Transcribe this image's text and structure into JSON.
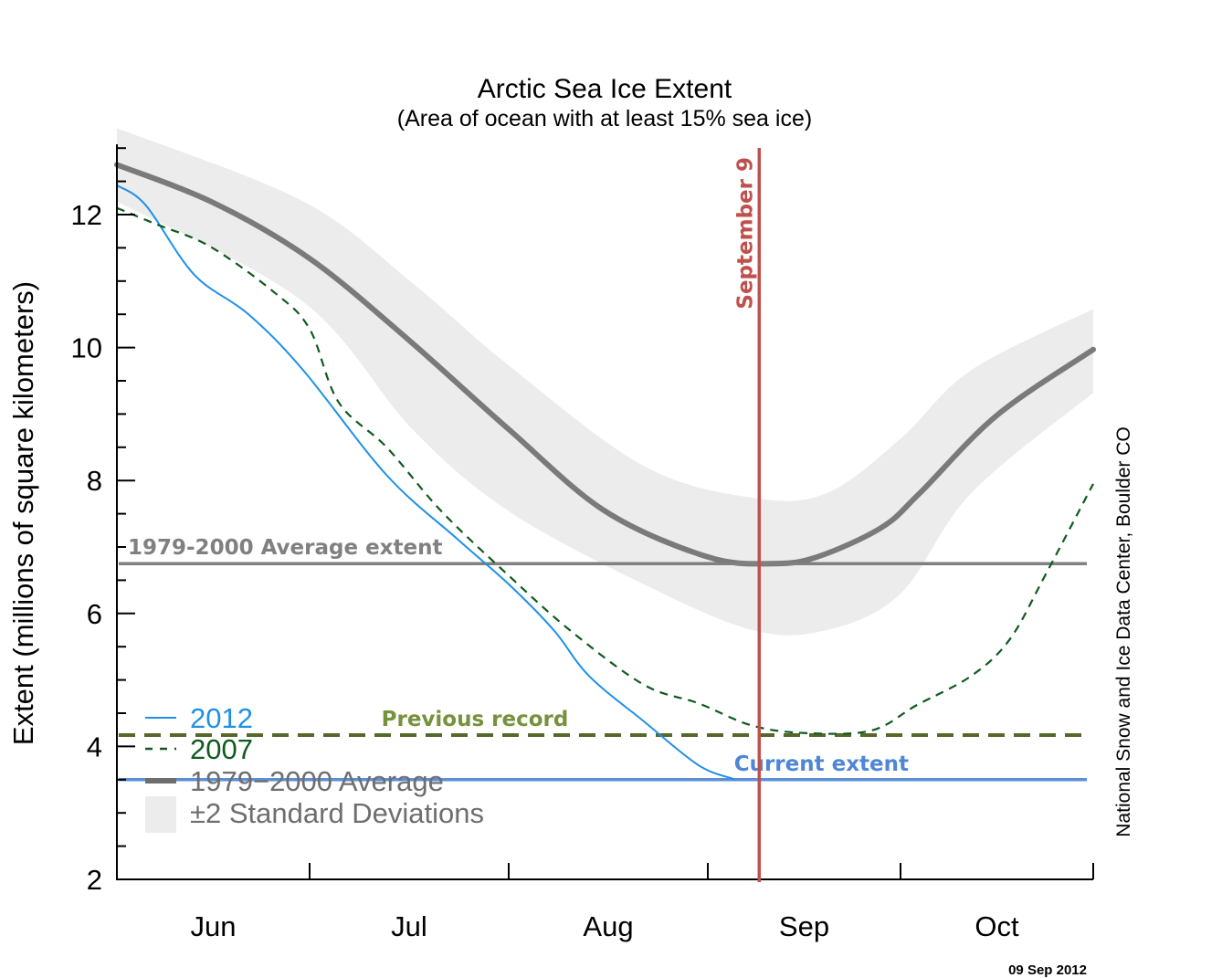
{
  "chart_data": {
    "type": "line",
    "title": "Arctic Sea Ice Extent",
    "subtitle": "(Area of ocean with at least 15% sea ice)",
    "xlabel": "",
    "ylabel": "Extent (millions of square kilometers)",
    "ylim": [
      2,
      13
    ],
    "yticks": [
      2,
      4,
      6,
      8,
      10,
      12
    ],
    "ytick_labels": [
      "2",
      "4",
      "6",
      "8",
      "10",
      "12"
    ],
    "x_unit": "days since Jun 1",
    "xlim": [
      0,
      152
    ],
    "month_boundaries": [
      0,
      30,
      61,
      92,
      122,
      152
    ],
    "xtick_labels": [
      {
        "label": "Jun",
        "day": 15
      },
      {
        "label": "Jul",
        "day": 45.5
      },
      {
        "label": "Aug",
        "day": 76.5
      },
      {
        "label": "Sep",
        "day": 107
      },
      {
        "label": "Oct",
        "day": 137
      }
    ],
    "grid": false,
    "legend_position": "bottom-left",
    "series": [
      {
        "name": "1979−2000 Average",
        "style": "solid-thick",
        "color": "#7a7a7a",
        "x": [
          0,
          15,
          30,
          45,
          61,
          76,
          92,
          102,
          109,
          119,
          125,
          137,
          152
        ],
        "values": [
          12.75,
          12.18,
          11.34,
          10.15,
          8.77,
          7.54,
          6.85,
          6.75,
          6.85,
          7.29,
          7.81,
          8.98,
          9.97
        ]
      },
      {
        "name": "2012",
        "style": "solid",
        "color": "#1e90e8",
        "x": [
          0,
          4.5,
          12,
          20.5,
          29,
          42,
          53,
          61,
          68,
          73.5,
          82,
          90.5,
          96
        ],
        "values": [
          12.44,
          12.14,
          11.1,
          10.5,
          9.66,
          8.08,
          7.12,
          6.44,
          5.75,
          5.06,
          4.38,
          3.72,
          3.51
        ]
      },
      {
        "name": "2007",
        "style": "dashed",
        "color": "#0f5a1e",
        "x": [
          0,
          6,
          14.5,
          24.5,
          30,
          34.5,
          42,
          50.5,
          61,
          70.5,
          82,
          90.5,
          99,
          107.5,
          117.5,
          124.5,
          133,
          139,
          144.5,
          152
        ],
        "values": [
          12.1,
          11.86,
          11.52,
          10.83,
          10.28,
          9.18,
          8.5,
          7.54,
          6.57,
          5.75,
          4.93,
          4.65,
          4.31,
          4.2,
          4.24,
          4.62,
          5.06,
          5.61,
          6.57,
          7.95
        ]
      }
    ],
    "band": {
      "name": "±2 Standard Deviations",
      "color": "#ececec",
      "x": [
        0,
        29,
        46,
        61,
        82,
        99,
        110.5,
        122,
        133,
        152
      ],
      "upper": [
        13.3,
        12.2,
        10.97,
        9.73,
        8.22,
        7.74,
        7.81,
        8.63,
        9.66,
        10.58
      ],
      "lower": [
        12.2,
        10.69,
        8.77,
        7.54,
        6.44,
        5.75,
        5.75,
        6.3,
        7.81,
        9.32
      ]
    },
    "reference_lines": [
      {
        "label": "1979-2000 Average extent",
        "value": 6.75,
        "color": "#808080",
        "style": "solid"
      },
      {
        "label": "Previous record",
        "value": 4.17,
        "color": "#56672a",
        "style": "dashed",
        "label_color": "#76923c"
      },
      {
        "label": "Current extent",
        "value": 3.5,
        "color": "#5b8fd6",
        "style": "solid",
        "label_color": "#4f86d6"
      }
    ],
    "vertical_marker": {
      "label": "September 9",
      "day": 100,
      "color": "#c0504d"
    },
    "legend": [
      {
        "label": "2012",
        "color": "#1e90e8",
        "style": "solid"
      },
      {
        "label": "2007",
        "color": "#0f5a1e",
        "style": "dashed"
      },
      {
        "label": "1979−2000 Average",
        "color": "#6e6e6e",
        "style": "solid-thick"
      },
      {
        "label": "±2 Standard Deviations",
        "color": "#ececec",
        "style": "box"
      }
    ],
    "credit": "National Snow and Ice Data Center, Boulder CO",
    "date_stamp": "09 Sep 2012"
  }
}
